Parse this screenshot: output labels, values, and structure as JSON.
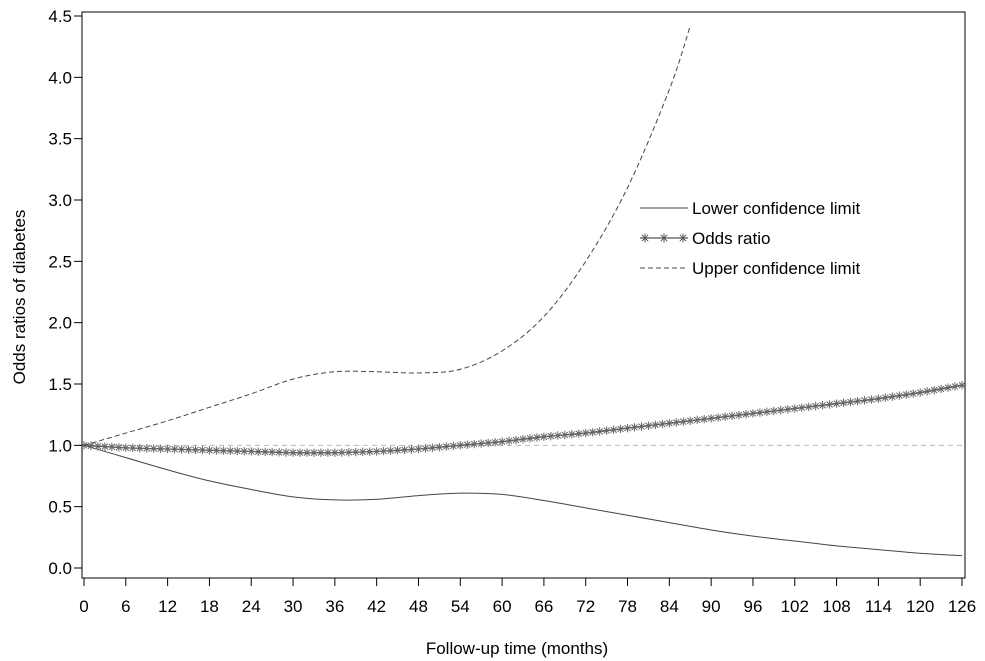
{
  "chart_data": {
    "type": "line",
    "xlabel": "Follow-up time (months)",
    "ylabel": "Odds ratios of diabetes",
    "xlim": [
      0,
      126
    ],
    "ylim": [
      0,
      4.5
    ],
    "x_ticks": [
      0,
      6,
      12,
      18,
      24,
      30,
      36,
      42,
      48,
      54,
      60,
      66,
      72,
      78,
      84,
      90,
      96,
      102,
      108,
      114,
      120,
      126
    ],
    "y_ticks": [
      "0.0",
      "0.5",
      "1.0",
      "1.5",
      "2.0",
      "2.5",
      "3.0",
      "3.5",
      "4.0",
      "4.5"
    ],
    "reference_line": 1.0,
    "legend_position": "right",
    "grid": false,
    "series": [
      {
        "name": "Lower confidence limit",
        "style": "solid",
        "color": "#444444",
        "x": [
          0,
          6,
          12,
          18,
          24,
          30,
          36,
          42,
          48,
          54,
          60,
          66,
          72,
          78,
          84,
          90,
          96,
          102,
          108,
          114,
          120,
          126
        ],
        "y": [
          1.0,
          0.9,
          0.8,
          0.71,
          0.64,
          0.58,
          0.555,
          0.56,
          0.59,
          0.61,
          0.6,
          0.55,
          0.49,
          0.43,
          0.37,
          0.31,
          0.26,
          0.22,
          0.18,
          0.15,
          0.12,
          0.1
        ]
      },
      {
        "name": "Odds ratio",
        "style": "star",
        "color": "#555555",
        "x": [
          0,
          6,
          12,
          18,
          24,
          30,
          36,
          42,
          48,
          54,
          60,
          66,
          72,
          78,
          84,
          90,
          96,
          102,
          108,
          114,
          120,
          126
        ],
        "y": [
          1.0,
          0.98,
          0.97,
          0.96,
          0.95,
          0.94,
          0.94,
          0.95,
          0.97,
          1.0,
          1.03,
          1.07,
          1.1,
          1.14,
          1.18,
          1.22,
          1.26,
          1.3,
          1.34,
          1.38,
          1.43,
          1.49
        ]
      },
      {
        "name": "Upper confidence limit",
        "style": "dashed",
        "color": "#444444",
        "x": [
          0,
          6,
          12,
          18,
          24,
          30,
          36,
          42,
          48,
          54,
          60,
          66,
          72,
          78,
          84,
          87
        ],
        "y": [
          1.0,
          1.1,
          1.2,
          1.31,
          1.42,
          1.54,
          1.6,
          1.6,
          1.59,
          1.62,
          1.77,
          2.05,
          2.5,
          3.1,
          3.9,
          4.42
        ]
      }
    ]
  }
}
